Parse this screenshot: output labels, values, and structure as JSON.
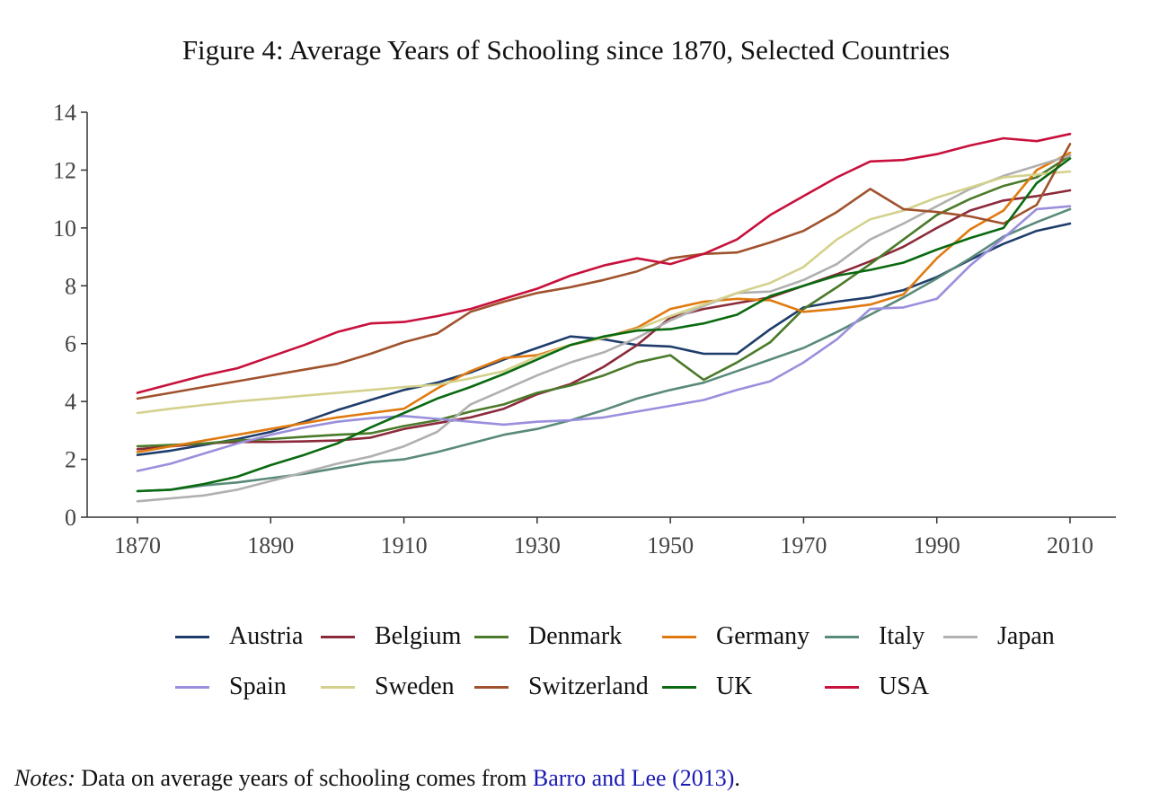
{
  "figure": {
    "title": "Figure 4: Average Years of Schooling since 1870, Selected Countries"
  },
  "chart_data": {
    "type": "line",
    "title": "Figure 4: Average Years of Schooling since 1870, Selected Countries",
    "xlabel": "",
    "ylabel": "",
    "xlim": [
      1870,
      2010
    ],
    "ylim": [
      0,
      14
    ],
    "x_ticks": [
      1870,
      1890,
      1910,
      1930,
      1950,
      1970,
      1990,
      2010
    ],
    "y_ticks": [
      0,
      2,
      4,
      6,
      8,
      10,
      12,
      14
    ],
    "grid": false,
    "legend_position": "bottom",
    "x": [
      1870,
      1875,
      1880,
      1885,
      1890,
      1895,
      1900,
      1905,
      1910,
      1915,
      1920,
      1925,
      1930,
      1935,
      1940,
      1945,
      1950,
      1955,
      1960,
      1965,
      1970,
      1975,
      1980,
      1985,
      1990,
      1995,
      2000,
      2005,
      2010
    ],
    "series": [
      {
        "name": "Austria",
        "color": "#1f3d6b",
        "values": [
          2.15,
          2.3,
          2.5,
          2.7,
          2.95,
          3.3,
          3.7,
          4.05,
          4.4,
          4.65,
          5.0,
          5.45,
          5.85,
          6.25,
          6.15,
          5.95,
          5.9,
          5.65,
          5.65,
          6.5,
          7.25,
          7.45,
          7.6,
          7.85,
          8.3,
          8.9,
          9.45,
          9.9,
          10.15
        ]
      },
      {
        "name": "Belgium",
        "color": "#8b2a3a",
        "values": [
          2.35,
          2.45,
          2.55,
          2.6,
          2.6,
          2.62,
          2.65,
          2.75,
          3.05,
          3.25,
          3.45,
          3.75,
          4.25,
          4.6,
          5.2,
          5.95,
          6.9,
          7.2,
          7.4,
          7.6,
          8.0,
          8.4,
          8.85,
          9.35,
          10.0,
          10.6,
          10.95,
          11.1,
          11.3
        ]
      },
      {
        "name": "Denmark",
        "color": "#4a7a2a",
        "values": [
          2.45,
          2.5,
          2.55,
          2.65,
          2.7,
          2.78,
          2.85,
          2.9,
          3.15,
          3.35,
          3.65,
          3.9,
          4.3,
          4.55,
          4.9,
          5.35,
          5.6,
          4.75,
          5.35,
          6.05,
          7.2,
          7.95,
          8.75,
          9.6,
          10.45,
          11.0,
          11.45,
          11.75,
          12.5
        ]
      },
      {
        "name": "Germany",
        "color": "#e07a10",
        "values": [
          2.25,
          2.45,
          2.65,
          2.85,
          3.05,
          3.25,
          3.45,
          3.6,
          3.75,
          4.45,
          5.05,
          5.5,
          5.6,
          5.95,
          6.2,
          6.55,
          7.2,
          7.45,
          7.55,
          7.5,
          7.1,
          7.2,
          7.35,
          7.7,
          8.95,
          9.95,
          10.6,
          12.0,
          12.6
        ]
      },
      {
        "name": "Italy",
        "color": "#5a8a7a",
        "values": [
          0.9,
          0.95,
          1.1,
          1.2,
          1.35,
          1.5,
          1.7,
          1.9,
          2.0,
          2.25,
          2.55,
          2.85,
          3.05,
          3.35,
          3.7,
          4.1,
          4.4,
          4.65,
          5.05,
          5.45,
          5.85,
          6.4,
          7.0,
          7.6,
          8.25,
          8.95,
          9.7,
          10.2,
          10.65
        ]
      },
      {
        "name": "Japan",
        "color": "#b0b0b0",
        "values": [
          0.55,
          0.65,
          0.75,
          0.95,
          1.25,
          1.55,
          1.85,
          2.1,
          2.45,
          2.95,
          3.9,
          4.4,
          4.9,
          5.35,
          5.7,
          6.2,
          6.8,
          7.3,
          7.75,
          7.8,
          8.2,
          8.75,
          9.6,
          10.15,
          10.75,
          11.35,
          11.8,
          12.15,
          12.5
        ]
      },
      {
        "name": "Spain",
        "color": "#9a8fdc",
        "values": [
          1.6,
          1.85,
          2.2,
          2.55,
          2.85,
          3.1,
          3.3,
          3.42,
          3.5,
          3.4,
          3.3,
          3.2,
          3.3,
          3.35,
          3.45,
          3.65,
          3.85,
          4.05,
          4.4,
          4.7,
          5.35,
          6.15,
          7.2,
          7.25,
          7.55,
          8.7,
          9.65,
          10.65,
          10.75
        ]
      },
      {
        "name": "Sweden",
        "color": "#d4d18c",
        "values": [
          3.6,
          3.75,
          3.88,
          4.0,
          4.1,
          4.2,
          4.3,
          4.4,
          4.5,
          4.58,
          4.8,
          5.05,
          5.55,
          5.95,
          6.2,
          6.5,
          6.95,
          7.35,
          7.75,
          8.1,
          8.65,
          9.6,
          10.3,
          10.6,
          11.05,
          11.4,
          11.75,
          11.85,
          11.95
        ]
      },
      {
        "name": "Switzerland",
        "color": "#a0522d",
        "values": [
          4.1,
          4.3,
          4.5,
          4.7,
          4.9,
          5.1,
          5.3,
          5.65,
          6.05,
          6.35,
          7.1,
          7.45,
          7.75,
          7.95,
          8.2,
          8.5,
          8.95,
          9.1,
          9.15,
          9.5,
          9.9,
          10.55,
          11.35,
          10.65,
          10.55,
          10.4,
          10.15,
          10.8,
          12.9
        ]
      },
      {
        "name": "UK",
        "color": "#0a6a10",
        "values": [
          0.9,
          0.95,
          1.15,
          1.4,
          1.8,
          2.15,
          2.55,
          3.1,
          3.6,
          4.1,
          4.5,
          4.95,
          5.45,
          5.95,
          6.25,
          6.45,
          6.5,
          6.7,
          7.0,
          7.65,
          8.0,
          8.35,
          8.55,
          8.8,
          9.25,
          9.65,
          10.0,
          11.55,
          12.4
        ]
      },
      {
        "name": "USA",
        "color": "#c8103c",
        "values": [
          4.3,
          4.6,
          4.9,
          5.15,
          5.55,
          5.95,
          6.4,
          6.7,
          6.75,
          6.95,
          7.2,
          7.55,
          7.9,
          8.35,
          8.7,
          8.95,
          8.75,
          9.1,
          9.6,
          10.45,
          11.1,
          11.75,
          12.3,
          12.35,
          12.55,
          12.85,
          13.1,
          13.0,
          13.25
        ]
      }
    ]
  },
  "notes": {
    "prefix": "Notes:",
    "text": " Data on average years of schooling comes from ",
    "link_text": "Barro and Lee (2013)",
    "suffix": "."
  }
}
